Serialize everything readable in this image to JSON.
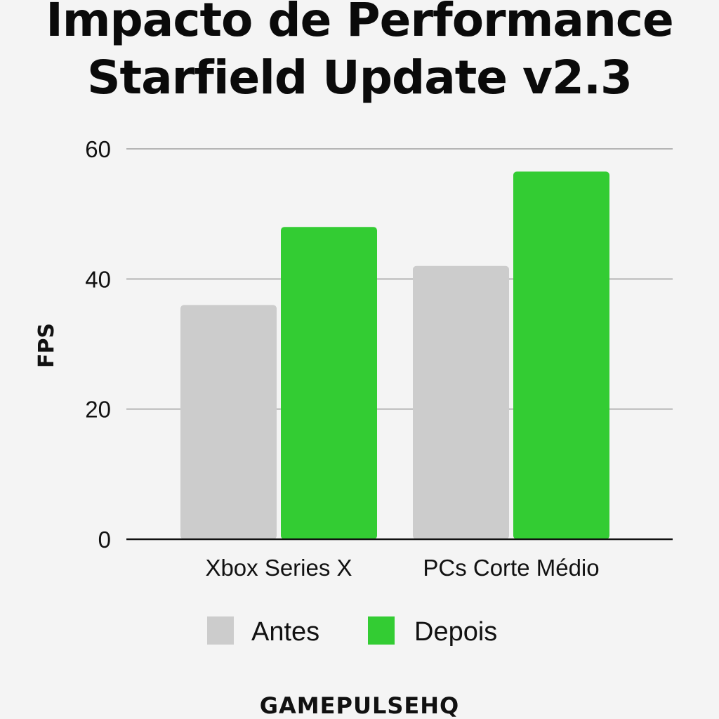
{
  "chart_data": {
    "type": "bar",
    "title": [
      "Impacto de Performance",
      "Starfield Update v2.3"
    ],
    "xlabel": "",
    "ylabel": "FPS",
    "ylim": [
      0,
      60
    ],
    "yticks": [
      0,
      20,
      40,
      60
    ],
    "grid": true,
    "categories": [
      "Xbox Series X",
      "PCs Corte Médio"
    ],
    "series": [
      {
        "name": "Antes",
        "values": [
          36,
          42
        ],
        "color": "#cccccc"
      },
      {
        "name": "Depois",
        "values": [
          48,
          56.5
        ],
        "color": "#33cc33"
      }
    ],
    "legend_position": "bottom-center"
  },
  "watermark": "GAMEPULSEHQ"
}
